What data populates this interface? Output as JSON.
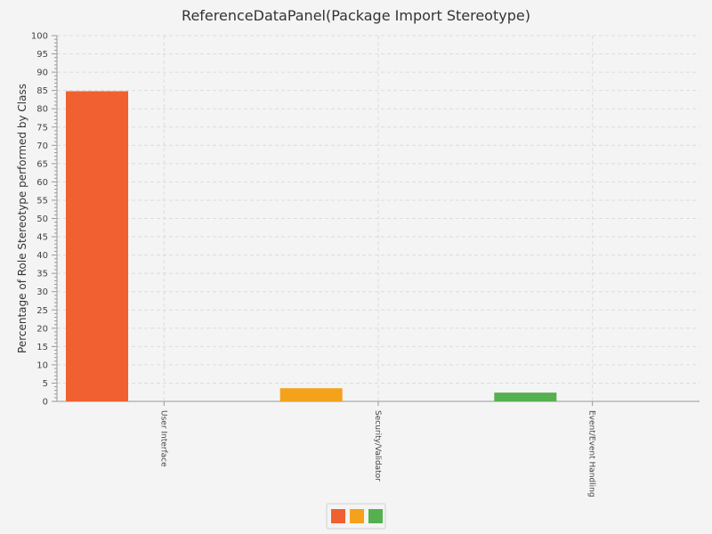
{
  "chart_data": {
    "type": "bar",
    "title": "ReferenceDataPanel(Package Import Stereotype)",
    "ylabel": "Percentage of Role Stereotype performed by Class",
    "xlabel": "",
    "ylim": [
      0,
      100
    ],
    "ytick_step": 5,
    "grid": true,
    "legend_placement": "bottom-center",
    "categories": [
      "User Interface",
      "Security/Validator",
      "Event/Event Handling"
    ],
    "values": [
      84.8,
      3.6,
      2.4
    ],
    "bar_colors": [
      "#f06030",
      "#f4a21c",
      "#55b050"
    ]
  }
}
